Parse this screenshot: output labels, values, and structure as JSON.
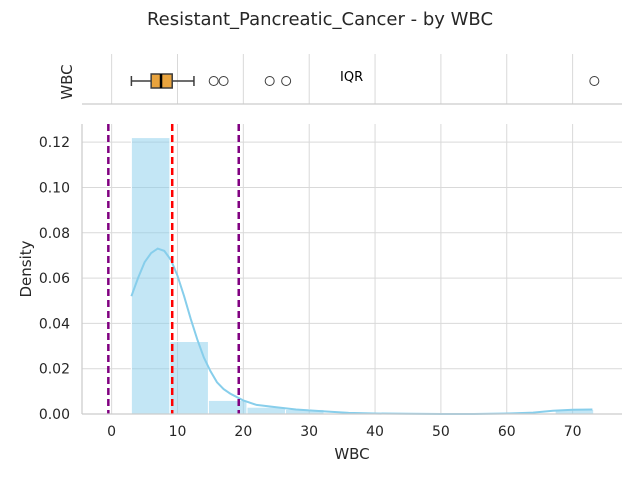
{
  "chart_data": [
    {
      "type": "box",
      "panel": "top",
      "ylabel": "WBC",
      "annotation": "IQR",
      "box": {
        "whisker_low": 3.0,
        "q1": 6.0,
        "median": 7.5,
        "q3": 9.2,
        "whisker_high": 12.5
      },
      "outliers": [
        15.5,
        17.0,
        24.0,
        26.5,
        73.3
      ],
      "colors": {
        "box": "#e8a33d",
        "median": "#000000"
      }
    },
    {
      "type": "histogram",
      "panel": "main",
      "title": "Resistant_Pancreatic_Cancer - by WBC",
      "xlabel": "WBC",
      "ylabel": "Density",
      "xlim": [
        -4.5,
        77.5
      ],
      "ylim": [
        0,
        0.128
      ],
      "xticks": [
        0,
        10,
        20,
        30,
        40,
        50,
        60,
        70
      ],
      "yticks": [
        0.0,
        0.02,
        0.04,
        0.06,
        0.08,
        0.1,
        0.12
      ],
      "ytick_labels": [
        "0.00",
        "0.02",
        "0.04",
        "0.06",
        "0.08",
        "0.10",
        "0.12"
      ],
      "grid": true,
      "bins": [
        {
          "x0": 3.0,
          "x1": 8.85,
          "density": 0.122
        },
        {
          "x0": 8.85,
          "x1": 14.7,
          "density": 0.032
        },
        {
          "x0": 14.7,
          "x1": 20.55,
          "density": 0.006
        },
        {
          "x0": 20.55,
          "x1": 26.4,
          "density": 0.003
        },
        {
          "x0": 26.4,
          "x1": 32.25,
          "density": 0.002
        },
        {
          "x0": 32.25,
          "x1": 38.1,
          "density": 0.0
        },
        {
          "x0": 38.1,
          "x1": 43.95,
          "density": 0.0
        },
        {
          "x0": 43.95,
          "x1": 49.8,
          "density": 0.0
        },
        {
          "x0": 49.8,
          "x1": 55.65,
          "density": 0.0
        },
        {
          "x0": 55.65,
          "x1": 61.5,
          "density": 0.0
        },
        {
          "x0": 61.5,
          "x1": 67.35,
          "density": 0.0
        },
        {
          "x0": 67.35,
          "x1": 73.2,
          "density": 0.002
        }
      ],
      "kde": {
        "x": [
          3,
          4,
          5,
          6,
          7,
          8,
          9,
          10,
          11,
          12,
          13,
          14,
          15,
          16,
          17,
          18,
          20,
          22,
          25,
          28,
          32,
          36,
          40,
          45,
          50,
          55,
          60,
          64,
          67,
          70,
          73
        ],
        "y": [
          0.052,
          0.06,
          0.067,
          0.071,
          0.073,
          0.072,
          0.068,
          0.061,
          0.052,
          0.042,
          0.033,
          0.025,
          0.019,
          0.014,
          0.011,
          0.009,
          0.006,
          0.004,
          0.003,
          0.002,
          0.0012,
          0.0005,
          0.0002,
          0.0001,
          0.0,
          0.0,
          0.0002,
          0.0006,
          0.0014,
          0.0019,
          0.002
        ]
      },
      "reference_lines": [
        {
          "x": -0.5,
          "color": "#800080",
          "style": "dashed"
        },
        {
          "x": 9.2,
          "color": "#ff0000",
          "style": "dashed"
        },
        {
          "x": 19.3,
          "color": "#800080",
          "style": "dashed"
        }
      ],
      "colors": {
        "bars": "#87ceeb",
        "kde": "#87ceeb"
      }
    }
  ]
}
